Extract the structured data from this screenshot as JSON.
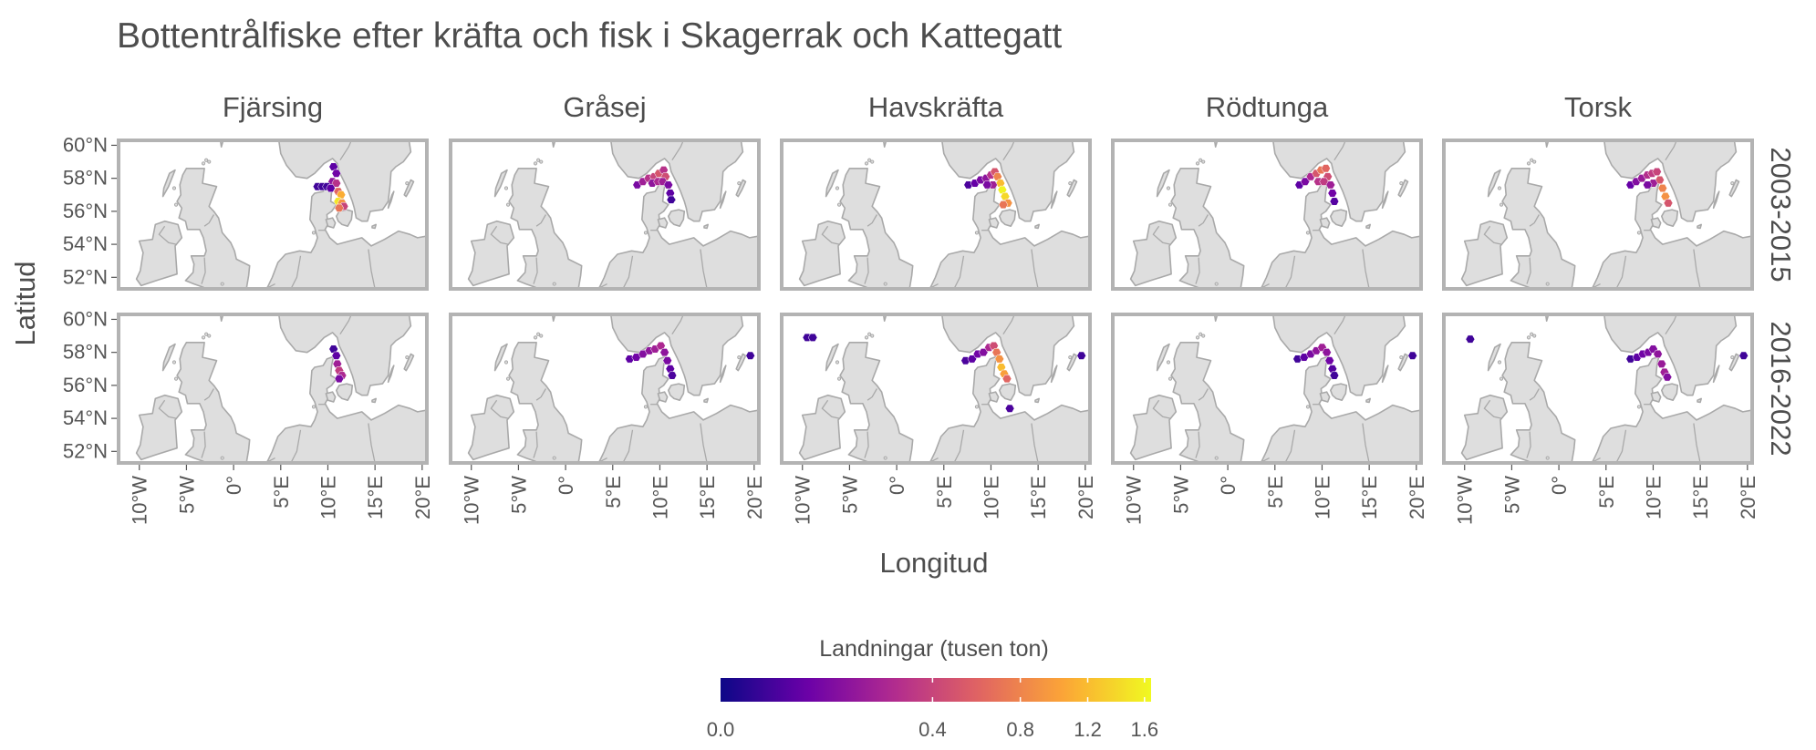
{
  "title": "Bottentrålfiske efter kräfta och fisk i Skagerrak och Kattegatt",
  "facets": {
    "columns": [
      "Fjärsing",
      "Gråsej",
      "Havskräfta",
      "Rödtunga",
      "Torsk"
    ],
    "rows": [
      "2003-2015",
      "2016-2022"
    ]
  },
  "axes": {
    "x_title": "Longitud",
    "y_title": "Latitud",
    "x_ticks": [
      "10°W",
      "5°W",
      "0°",
      "5°E",
      "10°E",
      "15°E",
      "20°E"
    ],
    "x_tick_values": [
      -10,
      -5,
      0,
      5,
      10,
      15,
      20
    ],
    "y_ticks": [
      "60°N",
      "58°N",
      "56°N",
      "54°N",
      "52°N"
    ],
    "y_tick_values": [
      60,
      58,
      56,
      54,
      52
    ],
    "xlim": [
      -12.2,
      20.5
    ],
    "ylim": [
      51.3,
      60.3
    ]
  },
  "legend": {
    "title": "Landningar (tusen ton)",
    "ticks": [
      "0.0",
      "0.4",
      "0.8",
      "1.2",
      "1.6"
    ],
    "tick_values": [
      0.0,
      0.4,
      0.8,
      1.2,
      1.6
    ],
    "scale": "square-root",
    "palette": [
      "#0d0887",
      "#6a00a8",
      "#b12a90",
      "#e16462",
      "#fca636",
      "#f0f921"
    ],
    "range": [
      0,
      1.65
    ]
  },
  "chart_data": {
    "type": "heatmap",
    "description_unit": "Landningar (tusen ton)",
    "cells": {
      "Fjärsing|2003-2015": [
        [
          10.6,
          58.7,
          0.05
        ],
        [
          10.9,
          58.3,
          0.08
        ],
        [
          10.5,
          57.8,
          0.15
        ],
        [
          10.9,
          57.7,
          0.3
        ],
        [
          11.1,
          57.2,
          0.6
        ],
        [
          11.4,
          57.0,
          1.1
        ],
        [
          11.1,
          56.6,
          1.5
        ],
        [
          11.5,
          56.5,
          0.9
        ],
        [
          11.7,
          56.3,
          0.4
        ],
        [
          11.2,
          56.2,
          0.7
        ],
        [
          8.9,
          57.5,
          0.02
        ],
        [
          9.4,
          57.5,
          0.02
        ],
        [
          9.9,
          57.5,
          0.02
        ],
        [
          10.3,
          57.4,
          0.05
        ]
      ],
      "Gråsej|2003-2015": [
        [
          7.6,
          57.6,
          0.1
        ],
        [
          8.2,
          57.8,
          0.2
        ],
        [
          8.8,
          58.0,
          0.3
        ],
        [
          9.4,
          58.1,
          0.4
        ],
        [
          9.9,
          58.3,
          0.5
        ],
        [
          10.4,
          58.5,
          0.3
        ],
        [
          10.6,
          58.1,
          0.45
        ],
        [
          9.2,
          57.7,
          0.15
        ],
        [
          9.8,
          57.8,
          0.25
        ],
        [
          10.3,
          57.8,
          0.2
        ],
        [
          10.9,
          57.6,
          0.1
        ],
        [
          11.1,
          57.1,
          0.05
        ],
        [
          11.2,
          56.7,
          0.02
        ]
      ],
      "Havskräfta|2003-2015": [
        [
          7.6,
          57.6,
          0.03
        ],
        [
          8.3,
          57.7,
          0.06
        ],
        [
          8.9,
          57.9,
          0.1
        ],
        [
          9.5,
          58.0,
          0.15
        ],
        [
          10.0,
          58.2,
          0.3
        ],
        [
          10.4,
          58.4,
          0.5
        ],
        [
          10.7,
          58.1,
          0.8
        ],
        [
          11.0,
          57.7,
          1.2
        ],
        [
          11.2,
          57.3,
          1.6
        ],
        [
          11.5,
          56.9,
          1.4
        ],
        [
          11.8,
          56.5,
          0.9
        ],
        [
          11.3,
          56.4,
          0.7
        ],
        [
          10.2,
          57.6,
          0.2
        ],
        [
          9.6,
          57.6,
          0.1
        ]
      ],
      "Rödtunga|2003-2015": [
        [
          7.6,
          57.6,
          0.05
        ],
        [
          8.2,
          57.8,
          0.1
        ],
        [
          8.8,
          58.1,
          0.25
        ],
        [
          9.4,
          58.3,
          0.5
        ],
        [
          9.9,
          58.5,
          0.7
        ],
        [
          10.4,
          58.6,
          0.6
        ],
        [
          10.6,
          58.1,
          0.45
        ],
        [
          9.6,
          57.8,
          0.3
        ],
        [
          10.2,
          57.8,
          0.35
        ],
        [
          10.9,
          57.6,
          0.2
        ],
        [
          11.1,
          57.1,
          0.08
        ],
        [
          11.3,
          56.6,
          0.04
        ]
      ],
      "Torsk|2003-2015": [
        [
          7.6,
          57.6,
          0.06
        ],
        [
          8.2,
          57.8,
          0.12
        ],
        [
          8.8,
          58.0,
          0.18
        ],
        [
          9.4,
          58.2,
          0.28
        ],
        [
          9.9,
          58.3,
          0.35
        ],
        [
          10.4,
          58.4,
          0.4
        ],
        [
          10.7,
          57.9,
          0.5
        ],
        [
          11.0,
          57.4,
          0.8
        ],
        [
          11.3,
          56.9,
          0.9
        ],
        [
          11.6,
          56.5,
          0.5
        ],
        [
          10.0,
          57.7,
          0.2
        ],
        [
          9.4,
          57.6,
          0.1
        ]
      ],
      "Fjärsing|2016-2022": [
        [
          10.6,
          58.2,
          0.02
        ],
        [
          10.9,
          57.8,
          0.05
        ],
        [
          11.0,
          57.3,
          0.2
        ],
        [
          11.2,
          56.9,
          0.35
        ],
        [
          11.5,
          56.6,
          0.25
        ],
        [
          11.2,
          56.4,
          0.1
        ]
      ],
      "Gråsej|2016-2022": [
        [
          6.8,
          57.6,
          0.05
        ],
        [
          7.5,
          57.7,
          0.08
        ],
        [
          8.2,
          57.9,
          0.12
        ],
        [
          8.9,
          58.1,
          0.15
        ],
        [
          9.5,
          58.2,
          0.2
        ],
        [
          10.1,
          58.4,
          0.25
        ],
        [
          10.5,
          58.0,
          0.15
        ],
        [
          10.8,
          57.5,
          0.1
        ],
        [
          11.1,
          57.0,
          0.05
        ],
        [
          11.3,
          56.6,
          0.03
        ],
        [
          19.6,
          57.8,
          0.02
        ]
      ],
      "Havskräfta|2016-2022": [
        [
          -9.5,
          58.9,
          0.02
        ],
        [
          -8.9,
          58.9,
          0.02
        ],
        [
          7.3,
          57.5,
          0.03
        ],
        [
          8.0,
          57.6,
          0.05
        ],
        [
          8.6,
          57.9,
          0.08
        ],
        [
          9.2,
          58.0,
          0.12
        ],
        [
          9.8,
          58.3,
          0.25
        ],
        [
          10.3,
          58.4,
          0.45
        ],
        [
          10.6,
          58.0,
          0.7
        ],
        [
          10.9,
          57.6,
          0.9
        ],
        [
          11.1,
          57.1,
          1.2
        ],
        [
          11.4,
          56.7,
          1.0
        ],
        [
          11.7,
          56.4,
          0.6
        ],
        [
          12.0,
          54.6,
          0.03
        ],
        [
          19.6,
          57.8,
          0.02
        ]
      ],
      "Rödtunga|2016-2022": [
        [
          7.4,
          57.6,
          0.02
        ],
        [
          8.1,
          57.7,
          0.05
        ],
        [
          8.8,
          57.9,
          0.1
        ],
        [
          9.4,
          58.1,
          0.15
        ],
        [
          10.0,
          58.3,
          0.2
        ],
        [
          10.5,
          58.0,
          0.15
        ],
        [
          10.8,
          57.5,
          0.08
        ],
        [
          11.1,
          57.0,
          0.04
        ],
        [
          11.3,
          56.6,
          0.02
        ],
        [
          19.6,
          57.8,
          0.02
        ]
      ],
      "Torsk|2016-2022": [
        [
          -9.4,
          58.8,
          0.02
        ],
        [
          7.6,
          57.6,
          0.02
        ],
        [
          8.3,
          57.7,
          0.05
        ],
        [
          8.9,
          57.9,
          0.08
        ],
        [
          9.5,
          58.0,
          0.1
        ],
        [
          10.0,
          58.2,
          0.12
        ],
        [
          10.5,
          57.9,
          0.15
        ],
        [
          10.9,
          57.3,
          0.18
        ],
        [
          11.2,
          56.8,
          0.2
        ],
        [
          11.5,
          56.5,
          0.12
        ],
        [
          19.6,
          57.8,
          0.02
        ]
      ]
    }
  }
}
